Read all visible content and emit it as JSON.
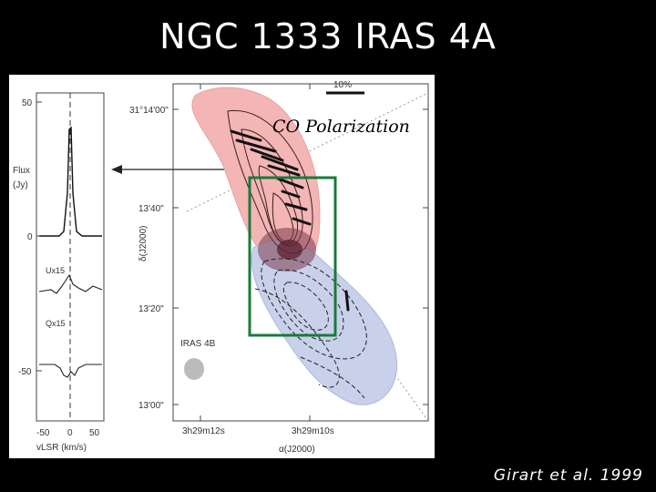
{
  "slide": {
    "title": "NGC 1333 IRAS 4A",
    "annotation": "CO Polarization",
    "citation": "Girart et al. 1999"
  },
  "figure": {
    "scale_bar_label": "10%",
    "iras4b_label": "IRAS 4B",
    "ra_axis_label": "α(J2000)",
    "dec_axis_label": "δ(J2000)",
    "dec_ticks": [
      "31°14'00\"",
      "13'40\"",
      "13'20\"",
      "13'00\""
    ],
    "ra_ticks": [
      "3h29m12s",
      "3h29m10s"
    ],
    "spectrum": {
      "flux_label": "Flux",
      "flux_unit": "(Jy)",
      "y_ticks": [
        "50",
        "0",
        "-50"
      ],
      "x_ticks": [
        "-50",
        "0",
        "50"
      ],
      "x_label": "vLSR (km/s)",
      "u_label": "Ux15",
      "q_label": "Qx15"
    },
    "colors": {
      "redshifted_lobe": "#f4b5b5",
      "blueshifted_lobe": "#c8d0ea",
      "highlight_box": "#1a7a3a"
    }
  }
}
